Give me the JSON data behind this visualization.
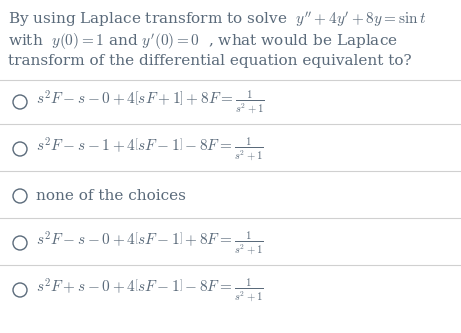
{
  "background_color": "#ffffff",
  "text_color": "#5a6a7a",
  "title_line1": "By using Laplace transform to solve  $y'' + 4y' + 8y = \\sin t$",
  "title_line2": "with  $y(0) = 1$ and $y'(0) = 0$  , what would be Laplace",
  "title_line3": "transform of the differential equation equivalent to?",
  "options": [
    "$s^2F - s - 0 + 4\\left[sF + 1\\right] + 8F = \\frac{1}{s^2+1}$",
    "$s^2F - s - 1 + 4\\left[sF - 1\\right] - 8F = \\frac{1}{s^2+1}$",
    "none of the choices",
    "$s^2F - s - 0 + 4\\left[sF - 1\\right] + 8F = \\frac{1}{s^2+1}$",
    "$s^2F + s - 0 + 4\\left[sF - 1\\right] - 8F = \\frac{1}{s^2+1}$"
  ],
  "option_font_size": 11,
  "title_font_size": 11,
  "divider_color": "#d0d0d0",
  "circle_color": "#5a6a7a",
  "fig_width": 4.61,
  "fig_height": 3.33,
  "fig_dpi": 100
}
